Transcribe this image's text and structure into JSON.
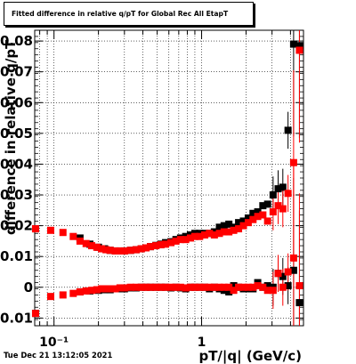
{
  "title": "Fitted difference in relative q/pT for Global Rec All EtapT",
  "footer": {
    "datestamp": "Tue Dec 21 13:12:05 2021"
  },
  "chart_data": {
    "type": "scatter",
    "title": "Fitted difference in relative q/pT for Global Rec All EtapT",
    "xlabel": "pT/|q| (GeV/c)",
    "ylabel": "difference in relative q/pT",
    "x_scale": "log",
    "xlim": [
      0.074,
      4.9
    ],
    "ylim": [
      -0.0125,
      0.0835
    ],
    "x_tick_labels": [
      "10⁻¹",
      "1"
    ],
    "y_ticks": [
      -0.01,
      0,
      0.01,
      0.02,
      0.03,
      0.04,
      0.05,
      0.06,
      0.07,
      0.08
    ],
    "y_tick_labels": [
      "-0.01",
      "0",
      "0.01",
      "0.02",
      "0.03",
      "0.04",
      "0.05",
      "0.06",
      "0.07",
      "0.08"
    ],
    "grid": true,
    "colors": {
      "series_a": "#000000",
      "series_b": "#ff0000"
    },
    "series": [
      {
        "color": "#000000",
        "marker": "square",
        "x": [
          0.075,
          0.15,
          0.175,
          0.2,
          0.22,
          0.24,
          0.26,
          0.28,
          0.3,
          0.33,
          0.36,
          0.39,
          0.42,
          0.45,
          0.49,
          0.53,
          0.57,
          0.62,
          0.67,
          0.72,
          0.78,
          0.84,
          0.9,
          0.97,
          1.05,
          1.13,
          1.22,
          1.32,
          1.42,
          1.53,
          1.65,
          1.78,
          1.92,
          2.07,
          2.23,
          2.4,
          2.6,
          2.8,
          3.05,
          3.3,
          3.55,
          3.85,
          4.2,
          4.6
        ],
        "y": [
          0.019,
          0.016,
          0.014,
          0.013,
          0.0125,
          0.012,
          0.0118,
          0.0118,
          0.0118,
          0.012,
          0.0122,
          0.0125,
          0.0128,
          0.0132,
          0.0136,
          0.014,
          0.0145,
          0.0148,
          0.0155,
          0.016,
          0.0165,
          0.017,
          0.0175,
          0.0175,
          0.0175,
          0.0175,
          0.018,
          0.0195,
          0.02,
          0.0205,
          0.0195,
          0.021,
          0.0215,
          0.0225,
          0.024,
          0.0245,
          0.0265,
          0.027,
          0.03,
          0.032,
          0.0325,
          0.051,
          0.079,
          0.0785
        ]
      },
      {
        "color": "#000000",
        "marker": "square",
        "x": [
          0.075,
          0.15,
          0.175,
          0.2,
          0.22,
          0.24,
          0.26,
          0.28,
          0.3,
          0.33,
          0.36,
          0.39,
          0.42,
          0.45,
          0.49,
          0.53,
          0.57,
          0.62,
          0.67,
          0.72,
          0.78,
          0.84,
          0.9,
          0.97,
          1.05,
          1.13,
          1.22,
          1.32,
          1.42,
          1.53,
          1.65,
          1.78,
          1.92,
          2.07,
          2.23,
          2.4,
          2.6,
          2.8,
          3.05,
          3.3,
          3.55,
          3.85,
          4.2,
          4.6
        ],
        "y": [
          -0.0085,
          -0.0015,
          -0.0012,
          -0.001,
          -0.0008,
          -0.0008,
          -0.0005,
          -0.0005,
          -0.0005,
          -0.0002,
          -0.0002,
          0.0,
          0.0,
          0.0,
          0.0,
          0.0,
          0.0,
          -0.0002,
          0.0,
          -0.0002,
          -0.0005,
          0.0,
          0.0,
          0.0,
          0.0,
          -0.0005,
          0.0,
          -0.0005,
          -0.001,
          -0.0015,
          0.0005,
          0.0,
          -0.0005,
          -0.0005,
          -0.0005,
          0.0015,
          0.0,
          0.0005,
          0.0,
          0.0045,
          0.0035,
          0.0005,
          0.0055,
          -0.005
        ]
      },
      {
        "color": "#ff0000",
        "marker": "square",
        "x": [
          0.075,
          0.095,
          0.115,
          0.135,
          0.15,
          0.165,
          0.18,
          0.195,
          0.21,
          0.225,
          0.24,
          0.26,
          0.28,
          0.3,
          0.33,
          0.36,
          0.39,
          0.42,
          0.45,
          0.49,
          0.53,
          0.57,
          0.62,
          0.67,
          0.72,
          0.78,
          0.84,
          0.9,
          0.97,
          1.05,
          1.13,
          1.22,
          1.32,
          1.42,
          1.53,
          1.65,
          1.78,
          1.92,
          2.07,
          2.23,
          2.4,
          2.6,
          2.8,
          3.05,
          3.3,
          3.55,
          3.85,
          4.2,
          4.6
        ],
        "y": [
          0.019,
          0.0185,
          0.0178,
          0.0165,
          0.015,
          0.0142,
          0.0135,
          0.013,
          0.0125,
          0.0122,
          0.012,
          0.0118,
          0.0118,
          0.0118,
          0.012,
          0.0122,
          0.0125,
          0.0128,
          0.0132,
          0.0135,
          0.0138,
          0.014,
          0.0145,
          0.015,
          0.0155,
          0.0155,
          0.016,
          0.0165,
          0.0165,
          0.017,
          0.0175,
          0.017,
          0.0175,
          0.018,
          0.018,
          0.0185,
          0.019,
          0.02,
          0.021,
          0.022,
          0.023,
          0.0235,
          0.0215,
          0.0245,
          0.0265,
          0.0255,
          0.0305,
          0.0405,
          0.077
        ]
      },
      {
        "color": "#ff0000",
        "marker": "square",
        "x": [
          0.075,
          0.095,
          0.115,
          0.135,
          0.15,
          0.165,
          0.18,
          0.195,
          0.21,
          0.225,
          0.24,
          0.26,
          0.28,
          0.3,
          0.33,
          0.36,
          0.39,
          0.42,
          0.45,
          0.49,
          0.53,
          0.57,
          0.62,
          0.67,
          0.72,
          0.78,
          0.84,
          0.9,
          0.97,
          1.05,
          1.13,
          1.22,
          1.32,
          1.42,
          1.53,
          1.65,
          1.78,
          1.92,
          2.07,
          2.23,
          2.4,
          2.6,
          2.8,
          3.05,
          3.3,
          3.55,
          3.85,
          4.2,
          4.6
        ],
        "y": [
          -0.0085,
          -0.003,
          -0.0025,
          -0.002,
          -0.0015,
          -0.0012,
          -0.001,
          -0.0008,
          -0.0005,
          -0.0005,
          -0.0005,
          -0.0005,
          -0.0002,
          -0.0002,
          0.0,
          0.0,
          0.0,
          0.0,
          0.0,
          0.0,
          0.0,
          0.0,
          0.0,
          0.0,
          0.0,
          -0.0002,
          0.0,
          0.0,
          0.0,
          0.0,
          0.0,
          0.0,
          0.0,
          0.0,
          0.0,
          -0.001,
          0.0,
          0.0,
          0.0,
          0.0,
          0.0005,
          0.0,
          -0.001,
          -0.001,
          0.0045,
          0.0,
          0.005,
          0.0095,
          0.0005
        ]
      }
    ]
  }
}
